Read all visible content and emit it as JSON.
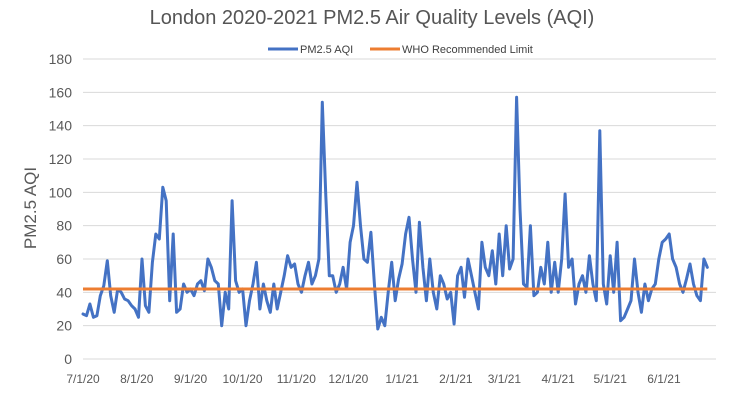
{
  "chart_data": {
    "type": "line",
    "title": "London 2020-2021  PM2.5 Air Quality Levels (AQI)",
    "xlabel": "",
    "ylabel": "PM2.5 AQI",
    "ylim": [
      0,
      180
    ],
    "yticks": [
      0,
      20,
      40,
      60,
      80,
      100,
      120,
      140,
      160,
      180
    ],
    "xlim": [
      "7/1/20",
      "7/1/21"
    ],
    "x_tick_labels": [
      "7/1/20",
      "8/1/20",
      "9/1/20",
      "10/1/20",
      "11/1/20",
      "12/1/20",
      "1/1/21",
      "2/1/21",
      "3/1/21",
      "4/1/21",
      "5/1/21",
      "6/1/21"
    ],
    "grid": true,
    "legend": "top-center",
    "colors": {
      "pm25": "#4472C4",
      "who": "#ED7D31"
    },
    "series": [
      {
        "name": "PM2.5 AQI",
        "color": "#4472C4",
        "points": [
          [
            "7/1/20",
            27
          ],
          [
            "7/3/20",
            26
          ],
          [
            "7/5/20",
            33
          ],
          [
            "7/7/20",
            25
          ],
          [
            "7/9/20",
            26
          ],
          [
            "7/11/20",
            38
          ],
          [
            "7/13/20",
            44
          ],
          [
            "7/15/20",
            59
          ],
          [
            "7/17/20",
            38
          ],
          [
            "7/19/20",
            28
          ],
          [
            "7/21/20",
            42
          ],
          [
            "7/23/20",
            40
          ],
          [
            "7/25/20",
            36
          ],
          [
            "7/27/20",
            35
          ],
          [
            "7/29/20",
            32
          ],
          [
            "7/31/20",
            30
          ],
          [
            "8/2/20",
            25
          ],
          [
            "8/4/20",
            60
          ],
          [
            "8/6/20",
            32
          ],
          [
            "8/8/20",
            28
          ],
          [
            "8/10/20",
            58
          ],
          [
            "8/12/20",
            75
          ],
          [
            "8/14/20",
            72
          ],
          [
            "8/16/20",
            103
          ],
          [
            "8/18/20",
            95
          ],
          [
            "8/20/20",
            35
          ],
          [
            "8/22/20",
            75
          ],
          [
            "8/24/20",
            28
          ],
          [
            "8/26/20",
            30
          ],
          [
            "8/28/20",
            45
          ],
          [
            "8/30/20",
            40
          ],
          [
            "9/1/20",
            42
          ],
          [
            "9/3/20",
            38
          ],
          [
            "9/5/20",
            45
          ],
          [
            "9/7/20",
            47
          ],
          [
            "9/9/20",
            41
          ],
          [
            "9/11/20",
            60
          ],
          [
            "9/13/20",
            55
          ],
          [
            "9/15/20",
            47
          ],
          [
            "9/17/20",
            45
          ],
          [
            "9/19/20",
            20
          ],
          [
            "9/21/20",
            40
          ],
          [
            "9/23/20",
            30
          ],
          [
            "9/25/20",
            95
          ],
          [
            "9/27/20",
            47
          ],
          [
            "9/29/20",
            40
          ],
          [
            "10/1/20",
            42
          ],
          [
            "10/3/20",
            20
          ],
          [
            "10/5/20",
            35
          ],
          [
            "10/7/20",
            45
          ],
          [
            "10/9/20",
            58
          ],
          [
            "10/11/20",
            30
          ],
          [
            "10/13/20",
            45
          ],
          [
            "10/15/20",
            35
          ],
          [
            "10/17/20",
            28
          ],
          [
            "10/19/20",
            45
          ],
          [
            "10/21/20",
            30
          ],
          [
            "10/23/20",
            40
          ],
          [
            "10/25/20",
            50
          ],
          [
            "10/27/20",
            62
          ],
          [
            "10/29/20",
            55
          ],
          [
            "10/31/20",
            57
          ],
          [
            "11/2/20",
            45
          ],
          [
            "11/4/20",
            40
          ],
          [
            "11/6/20",
            50
          ],
          [
            "11/8/20",
            58
          ],
          [
            "11/10/20",
            45
          ],
          [
            "11/12/20",
            50
          ],
          [
            "11/14/20",
            60
          ],
          [
            "11/16/20",
            154
          ],
          [
            "11/18/20",
            98
          ],
          [
            "11/20/20",
            50
          ],
          [
            "11/22/20",
            50
          ],
          [
            "11/24/20",
            40
          ],
          [
            "11/26/20",
            45
          ],
          [
            "11/28/20",
            55
          ],
          [
            "11/30/20",
            42
          ],
          [
            "12/2/20",
            70
          ],
          [
            "12/4/20",
            80
          ],
          [
            "12/6/20",
            106
          ],
          [
            "12/8/20",
            80
          ],
          [
            "12/10/20",
            60
          ],
          [
            "12/12/20",
            58
          ],
          [
            "12/14/20",
            76
          ],
          [
            "12/16/20",
            45
          ],
          [
            "12/18/20",
            18
          ],
          [
            "12/20/20",
            25
          ],
          [
            "12/22/20",
            20
          ],
          [
            "12/24/20",
            40
          ],
          [
            "12/26/20",
            58
          ],
          [
            "12/28/20",
            35
          ],
          [
            "12/30/20",
            48
          ],
          [
            "1/1/21",
            57
          ],
          [
            "1/3/21",
            75
          ],
          [
            "1/5/21",
            85
          ],
          [
            "1/7/21",
            60
          ],
          [
            "1/9/21",
            40
          ],
          [
            "1/11/21",
            82
          ],
          [
            "1/13/21",
            55
          ],
          [
            "1/15/21",
            35
          ],
          [
            "1/17/21",
            60
          ],
          [
            "1/19/21",
            40
          ],
          [
            "1/21/21",
            30
          ],
          [
            "1/23/21",
            50
          ],
          [
            "1/25/21",
            45
          ],
          [
            "1/27/21",
            36
          ],
          [
            "1/29/21",
            40
          ],
          [
            "1/31/21",
            21
          ],
          [
            "2/2/21",
            50
          ],
          [
            "2/4/21",
            55
          ],
          [
            "2/6/21",
            37
          ],
          [
            "2/8/21",
            60
          ],
          [
            "2/10/21",
            50
          ],
          [
            "2/12/21",
            40
          ],
          [
            "2/14/21",
            30
          ],
          [
            "2/16/21",
            70
          ],
          [
            "2/18/21",
            55
          ],
          [
            "2/20/21",
            50
          ],
          [
            "2/22/21",
            65
          ],
          [
            "2/24/21",
            45
          ],
          [
            "2/26/21",
            75
          ],
          [
            "2/28/21",
            50
          ],
          [
            "3/2/21",
            80
          ],
          [
            "3/4/21",
            54
          ],
          [
            "3/6/21",
            60
          ],
          [
            "3/8/21",
            157
          ],
          [
            "3/10/21",
            90
          ],
          [
            "3/12/21",
            45
          ],
          [
            "3/14/21",
            43
          ],
          [
            "3/16/21",
            80
          ],
          [
            "3/18/21",
            38
          ],
          [
            "3/20/21",
            40
          ],
          [
            "3/22/21",
            55
          ],
          [
            "3/24/21",
            45
          ],
          [
            "3/26/21",
            70
          ],
          [
            "3/28/21",
            40
          ],
          [
            "3/30/21",
            58
          ],
          [
            "4/1/21",
            40
          ],
          [
            "4/3/21",
            60
          ],
          [
            "4/5/21",
            99
          ],
          [
            "4/7/21",
            55
          ],
          [
            "4/9/21",
            60
          ],
          [
            "4/11/21",
            33
          ],
          [
            "4/13/21",
            45
          ],
          [
            "4/15/21",
            50
          ],
          [
            "4/17/21",
            40
          ],
          [
            "4/19/21",
            62
          ],
          [
            "4/21/21",
            45
          ],
          [
            "4/23/21",
            35
          ],
          [
            "4/25/21",
            137
          ],
          [
            "4/27/21",
            45
          ],
          [
            "4/29/21",
            33
          ],
          [
            "5/1/21",
            62
          ],
          [
            "5/3/21",
            40
          ],
          [
            "5/5/21",
            70
          ],
          [
            "5/7/21",
            23
          ],
          [
            "5/9/21",
            25
          ],
          [
            "5/11/21",
            30
          ],
          [
            "5/13/21",
            35
          ],
          [
            "5/15/21",
            60
          ],
          [
            "5/17/21",
            40
          ],
          [
            "5/19/21",
            28
          ],
          [
            "5/21/21",
            45
          ],
          [
            "5/23/21",
            35
          ],
          [
            "5/25/21",
            42
          ],
          [
            "5/27/21",
            45
          ],
          [
            "5/29/21",
            60
          ],
          [
            "5/31/21",
            70
          ],
          [
            "6/2/21",
            72
          ],
          [
            "6/4/21",
            75
          ],
          [
            "6/6/21",
            60
          ],
          [
            "6/8/21",
            55
          ],
          [
            "6/10/21",
            45
          ],
          [
            "6/12/21",
            40
          ],
          [
            "6/14/21",
            48
          ],
          [
            "6/16/21",
            57
          ],
          [
            "6/18/21",
            45
          ],
          [
            "6/20/21",
            38
          ],
          [
            "6/22/21",
            35
          ],
          [
            "6/24/21",
            60
          ],
          [
            "6/26/21",
            55
          ]
        ]
      },
      {
        "name": "WHO Recommended Limit",
        "color": "#ED7D31",
        "points": [
          [
            "7/1/20",
            42
          ],
          [
            "6/26/21",
            42
          ]
        ]
      }
    ]
  }
}
